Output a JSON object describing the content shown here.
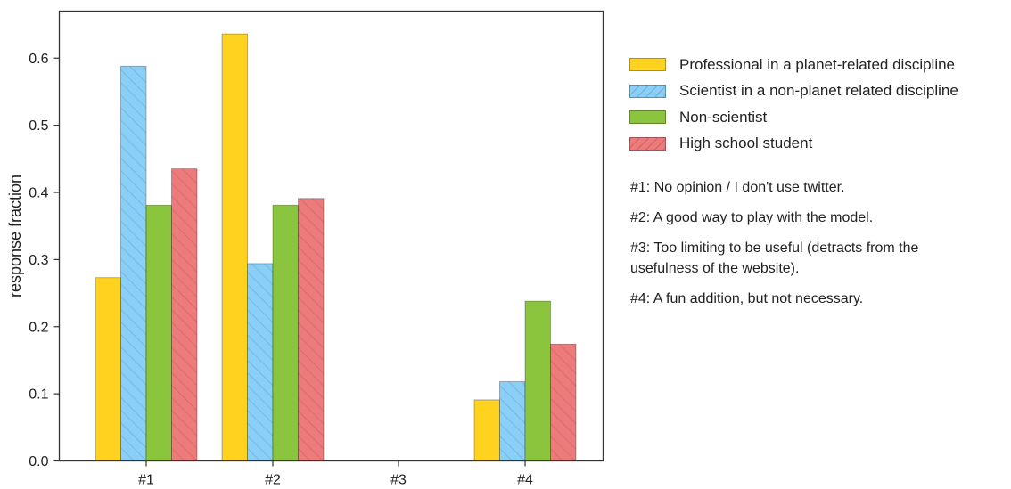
{
  "chart_data": {
    "type": "bar",
    "ylabel": "response fraction",
    "ylim": [
      0,
      0.67
    ],
    "yticks": [
      "0.0",
      "0.1",
      "0.2",
      "0.3",
      "0.4",
      "0.5",
      "0.6"
    ],
    "categories": [
      "#1",
      "#2",
      "#3",
      "#4"
    ],
    "grid": false,
    "legend_position": "right",
    "series": [
      {
        "name": "Professional in a planet-related discipline",
        "values": [
          0.273,
          0.636,
          0.0,
          0.091
        ],
        "color": "#FFD21F",
        "hatch": false
      },
      {
        "name": "Scientist in a non-planet related discipline",
        "values": [
          0.588,
          0.294,
          0.0,
          0.118
        ],
        "color": "#8ACFF7",
        "hatch": true
      },
      {
        "name": "Non-scientist",
        "values": [
          0.381,
          0.381,
          0.0,
          0.238
        ],
        "color": "#8BC43D",
        "hatch": false
      },
      {
        "name": "High school student",
        "values": [
          0.435,
          0.391,
          0.0,
          0.174
        ],
        "color": "#EE7B7B",
        "hatch": true
      }
    ]
  },
  "notes": [
    "#1: No opinion / I don't use twitter.",
    "#2: A good way to play with the model.",
    "#3: Too limiting to be useful (detracts from the usefulness of the website).",
    "#4: A fun addition, but not necessary."
  ]
}
